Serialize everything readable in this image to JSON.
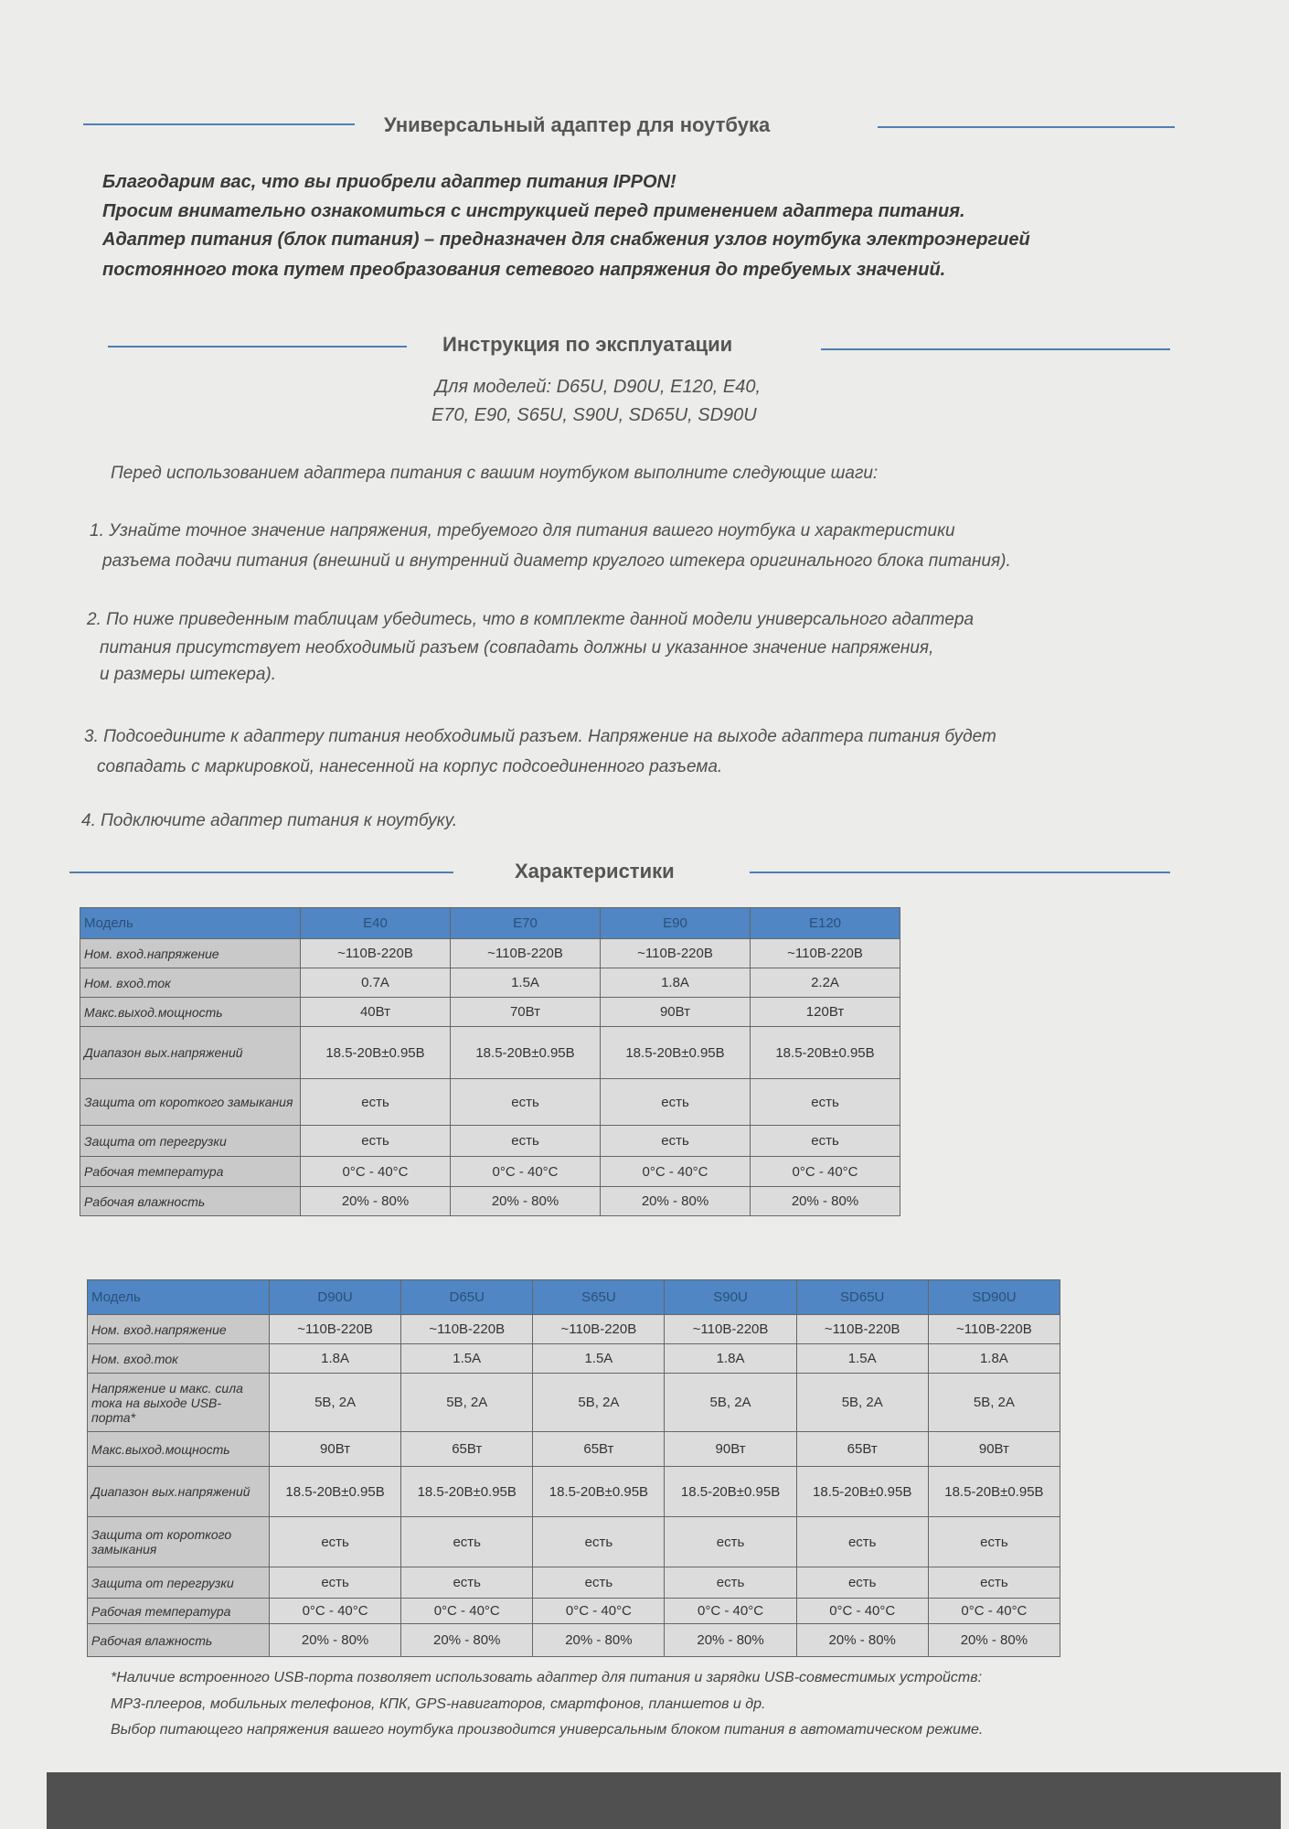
{
  "header": {
    "title": "Универсальный адаптер для ноутбука"
  },
  "intro": [
    "Благодарим вас, что вы приобрели адаптер питания IPPON!",
    "Просим внимательно ознакомиться с инструкцией перед применением адаптера питания.",
    "Адаптер питания (блок питания) – предназначен для снабжения узлов ноутбука электроэнергией",
    "постоянного тока путем преобразования сетевого напряжения до требуемых значений."
  ],
  "instructions": {
    "title": "Инструкция по эксплуатации",
    "models": [
      "Для моделей: D65U, D90U, E120, E40,",
      "E70, E90, S65U, S90U, SD65U, SD90U"
    ],
    "preface": "Перед использованием адаптера питания с вашим ноутбуком выполните следующие шаги:",
    "steps": [
      [
        "1. Узнайте точное значение напряжения, требуемого для питания вашего ноутбука и характеристики",
        "разъема подачи питания (внешний и внутренний диаметр круглого штекера оригинального блока питания)."
      ],
      [
        "2. По ниже приведенным таблицам убедитесь, что в комплекте данной модели универсального адаптера",
        "питания присутствует необходимый разъем (совпадать должны и указанное значение напряжения,",
        "и размеры штекера)."
      ],
      [
        "3. Подсоедините к адаптеру питания необходимый разъем. Напряжение на выходе адаптера питания будет",
        "совпадать с маркировкой, нанесенной на корпус подсоединенного разъема."
      ],
      [
        "4. Подключите адаптер питания к ноутбуку."
      ]
    ]
  },
  "specs": {
    "title": "Характеристики"
  },
  "table1": {
    "header": [
      "Модель",
      "E40",
      "E70",
      "E90",
      "E120"
    ],
    "rows": [
      [
        "Ном. вход.напряжение",
        "~110В-220В",
        "~110В-220В",
        "~110В-220В",
        "~110В-220В"
      ],
      [
        "Ном. вход.ток",
        "0.7A",
        "1.5A",
        "1.8A",
        "2.2A"
      ],
      [
        "Макс.выход.мощность",
        "40Вт",
        "70Вт",
        "90Вт",
        "120Вт"
      ],
      [
        "Диапазон вых.напряжений",
        "18.5-20В±0.95В",
        "18.5-20В±0.95В",
        "18.5-20В±0.95В",
        "18.5-20В±0.95В"
      ],
      [
        "Защита от короткого замыкания",
        "есть",
        "есть",
        "есть",
        "есть"
      ],
      [
        "Защита от перегрузки",
        "есть",
        "есть",
        "есть",
        "есть"
      ],
      [
        "Рабочая температура",
        "0°C - 40°C",
        "0°C - 40°C",
        "0°C - 40°C",
        "0°C - 40°C"
      ],
      [
        "Рабочая влажность",
        "20% - 80%",
        "20% - 80%",
        "20% - 80%",
        "20% - 80%"
      ]
    ]
  },
  "table2": {
    "header": [
      "Модель",
      "D90U",
      "D65U",
      "S65U",
      "S90U",
      "SD65U",
      "SD90U"
    ],
    "rows": [
      [
        "Ном. вход.напряжение",
        "~110В-220В",
        "~110В-220В",
        "~110В-220В",
        "~110В-220В",
        "~110В-220В",
        "~110В-220В"
      ],
      [
        "Ном. вход.ток",
        "1.8A",
        "1.5A",
        "1.5A",
        "1.8A",
        "1.5A",
        "1.8A"
      ],
      [
        "Напряжение и макс. сила тока на выходе USB-порта*",
        "5В, 2А",
        "5В, 2А",
        "5В, 2А",
        "5В, 2А",
        "5В, 2А",
        "5В, 2А"
      ],
      [
        "Макс.выход.мощность",
        "90Вт",
        "65Вт",
        "65Вт",
        "90Вт",
        "65Вт",
        "90Вт"
      ],
      [
        "Диапазон вых.напряжений",
        "18.5-20В±0.95В",
        "18.5-20В±0.95В",
        "18.5-20В±0.95В",
        "18.5-20В±0.95В",
        "18.5-20В±0.95В",
        "18.5-20В±0.95В"
      ],
      [
        "Защита от короткого замыкания",
        "есть",
        "есть",
        "есть",
        "есть",
        "есть",
        "есть"
      ],
      [
        "Защита от перегрузки",
        "есть",
        "есть",
        "есть",
        "есть",
        "есть",
        "есть"
      ],
      [
        "Рабочая температура",
        "0°C - 40°C",
        "0°C - 40°C",
        "0°C - 40°C",
        "0°C - 40°C",
        "0°C - 40°C",
        "0°C - 40°C"
      ],
      [
        "Рабочая влажность",
        "20% - 80%",
        "20% - 80%",
        "20% - 80%",
        "20% - 80%",
        "20% - 80%",
        "20% - 80%"
      ]
    ]
  },
  "footnote": [
    "*Наличие встроенного USB-порта позволяет использовать адаптер для питания и зарядки USB-совместимых устройств:",
    "MP3-плееров, мобильных телефонов, КПК, GPS-навигаторов, смартфонов, планшетов и др.",
    "Выбор питающего напряжения вашего ноутбука производится универсальным блоком питания в автоматическом режиме."
  ]
}
